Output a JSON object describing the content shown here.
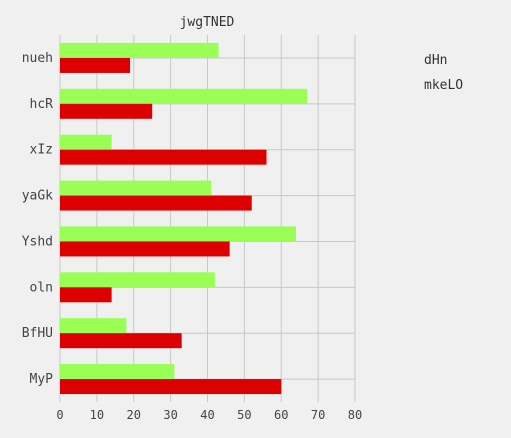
{
  "chart_data": {
    "type": "bar",
    "orientation": "horizontal",
    "title": "jwgTNED",
    "xlabel": "",
    "ylabel": "",
    "categories": [
      "nueh",
      "hcR",
      "xIz",
      "yaGk",
      "Yshd",
      "oln",
      "BfHU",
      "MyP"
    ],
    "series": [
      {
        "name": "dHn",
        "color": "#99ff55",
        "values": [
          43,
          67,
          14,
          41,
          64,
          42,
          18,
          31
        ]
      },
      {
        "name": "mkeLO",
        "color": "#dd0000",
        "values": [
          19,
          25,
          56,
          52,
          46,
          14,
          33,
          60
        ]
      }
    ],
    "xlim": [
      0,
      80
    ],
    "xticks": [
      0,
      10,
      20,
      30,
      40,
      50,
      60,
      70,
      80
    ],
    "grid": true,
    "legend_position": "top-right"
  }
}
